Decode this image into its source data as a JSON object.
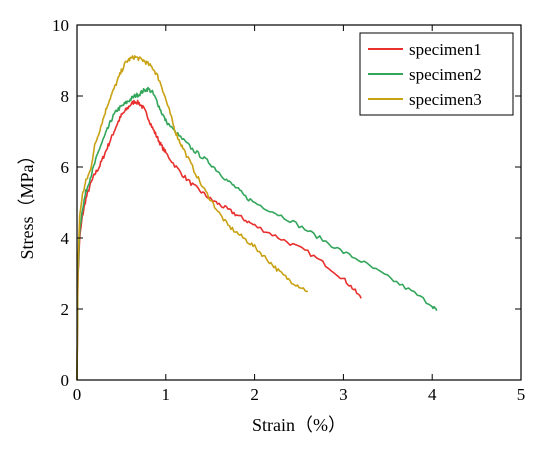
{
  "chart_data": {
    "type": "line",
    "xlabel": "Strain（%）",
    "ylabel": "Stress（MPa）",
    "xlim": [
      0,
      5
    ],
    "ylim": [
      0,
      10
    ],
    "xticks": [
      0,
      1,
      2,
      3,
      4,
      5
    ],
    "yticks": [
      0,
      2,
      4,
      6,
      8,
      10
    ],
    "grid": false,
    "legend_position": "top-right",
    "series": [
      {
        "name": "specimen1",
        "color": "#e8312f",
        "x": [
          0.0,
          0.01,
          0.03,
          0.06,
          0.1,
          0.15,
          0.2,
          0.25,
          0.3,
          0.35,
          0.4,
          0.45,
          0.5,
          0.55,
          0.6,
          0.65,
          0.7,
          0.75,
          0.8,
          0.85,
          0.9,
          0.95,
          1.0,
          1.1,
          1.2,
          1.3,
          1.4,
          1.5,
          1.6,
          1.7,
          1.8,
          1.9,
          2.0,
          2.2,
          2.4,
          2.6,
          2.8,
          3.0,
          3.1,
          3.2
        ],
        "y": [
          0.0,
          2.8,
          4.0,
          4.6,
          5.1,
          5.5,
          5.8,
          6.0,
          6.3,
          6.6,
          6.9,
          7.2,
          7.45,
          7.6,
          7.75,
          7.85,
          7.8,
          7.65,
          7.4,
          7.1,
          6.85,
          6.6,
          6.4,
          6.05,
          5.75,
          5.5,
          5.3,
          5.1,
          4.95,
          4.8,
          4.65,
          4.5,
          4.35,
          4.1,
          3.85,
          3.6,
          3.25,
          2.85,
          2.6,
          2.3
        ]
      },
      {
        "name": "specimen2",
        "color": "#33a65b",
        "x": [
          0.0,
          0.01,
          0.03,
          0.06,
          0.1,
          0.15,
          0.2,
          0.25,
          0.3,
          0.35,
          0.4,
          0.45,
          0.5,
          0.55,
          0.6,
          0.65,
          0.7,
          0.75,
          0.8,
          0.85,
          0.9,
          0.95,
          1.0,
          1.1,
          1.2,
          1.3,
          1.4,
          1.5,
          1.6,
          1.7,
          1.8,
          1.9,
          2.0,
          2.2,
          2.4,
          2.6,
          2.8,
          3.0,
          3.2,
          3.4,
          3.6,
          3.8,
          4.0,
          4.05
        ],
        "y": [
          0.0,
          3.0,
          4.2,
          4.8,
          5.3,
          5.7,
          6.1,
          6.5,
          6.8,
          7.1,
          7.4,
          7.6,
          7.7,
          7.8,
          7.9,
          8.0,
          8.05,
          8.15,
          8.2,
          8.1,
          7.85,
          7.55,
          7.3,
          7.0,
          6.75,
          6.5,
          6.3,
          6.1,
          5.85,
          5.6,
          5.4,
          5.15,
          5.0,
          4.75,
          4.5,
          4.2,
          3.9,
          3.6,
          3.35,
          3.05,
          2.75,
          2.45,
          2.1,
          1.95
        ]
      },
      {
        "name": "specimen3",
        "color": "#c9a214",
        "x": [
          0.0,
          0.01,
          0.03,
          0.06,
          0.1,
          0.15,
          0.2,
          0.25,
          0.3,
          0.35,
          0.4,
          0.45,
          0.5,
          0.55,
          0.6,
          0.65,
          0.7,
          0.75,
          0.8,
          0.85,
          0.9,
          0.95,
          1.0,
          1.05,
          1.1,
          1.15,
          1.2,
          1.3,
          1.4,
          1.5,
          1.6,
          1.7,
          1.8,
          1.9,
          2.0,
          2.1,
          2.2,
          2.3,
          2.4,
          2.5,
          2.6
        ],
        "y": [
          0.0,
          3.2,
          4.6,
          5.2,
          5.6,
          5.9,
          6.6,
          7.0,
          7.4,
          7.8,
          8.1,
          8.4,
          8.7,
          8.95,
          9.05,
          9.1,
          9.05,
          9.0,
          8.9,
          8.8,
          8.6,
          8.3,
          7.9,
          7.5,
          7.05,
          6.75,
          6.5,
          6.0,
          5.5,
          5.1,
          4.7,
          4.35,
          4.15,
          3.95,
          3.75,
          3.5,
          3.25,
          3.0,
          2.8,
          2.65,
          2.5
        ]
      }
    ]
  }
}
